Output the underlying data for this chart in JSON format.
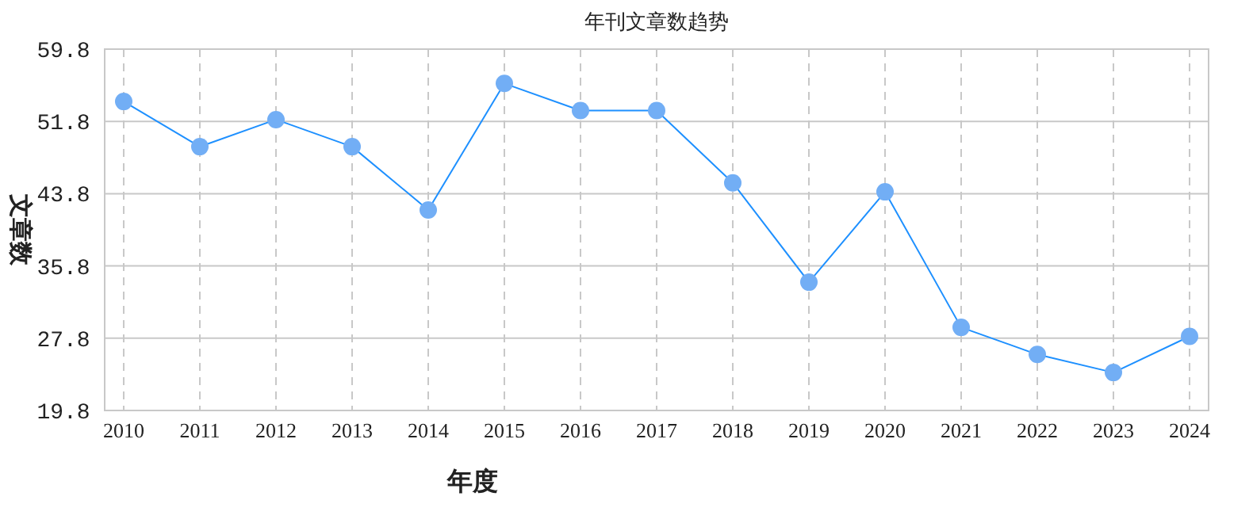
{
  "chart_data": {
    "type": "line",
    "title": "年刊文章数趋势",
    "xlabel": "年度",
    "ylabel": "文章数",
    "categories": [
      "2010",
      "2011",
      "2012",
      "2013",
      "2014",
      "2015",
      "2016",
      "2017",
      "2018",
      "2019",
      "2020",
      "2021",
      "2022",
      "2023",
      "2024"
    ],
    "series": [
      {
        "color": "#1e90ff",
        "values": [
          54,
          49,
          52,
          49,
          42,
          56,
          53,
          53,
          45,
          34,
          44,
          29,
          26,
          24,
          28
        ]
      }
    ],
    "ylim": [
      19.8,
      59.8
    ],
    "yticks": [
      19.8,
      27.8,
      35.8,
      43.8,
      51.8,
      59.8
    ],
    "grid": true,
    "marker": "circle",
    "line_style": "solid"
  }
}
